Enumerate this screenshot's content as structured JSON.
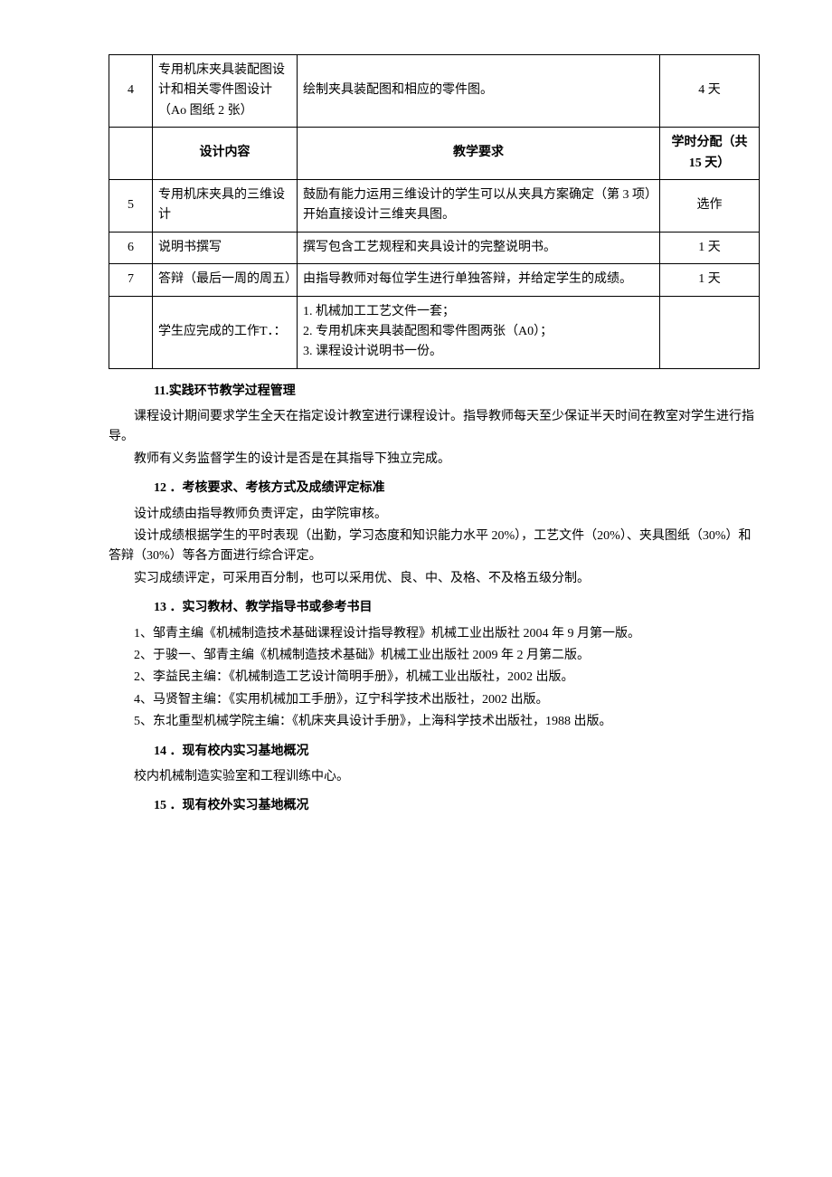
{
  "table": {
    "rows": [
      {
        "num": "4",
        "content": "专用机床夹具装配图设计和相关零件图设计（Ao 图纸 2 张）",
        "req": "绘制夹具装配图和相应的零件图。",
        "alloc": "4 天"
      },
      {
        "num": "",
        "content": "设计内容",
        "req": "教学要求",
        "alloc": "学时分配（共15 天）",
        "header": true
      },
      {
        "num": "5",
        "content": "专用机床夹具的三维设计",
        "req": "鼓励有能力运用三维设计的学生可以从夹具方案确定（第 3 项）开始直接设计三维夹具图。",
        "alloc": "选作"
      },
      {
        "num": "6",
        "content": "说明书撰写",
        "req": "撰写包含工艺规程和夹具设计的完整说明书。",
        "alloc": "1 天"
      },
      {
        "num": "7",
        "content": "答辩（最后一周的周五）",
        "req": "由指导教师对每位学生进行单独答辩，并给定学生的成绩。",
        "alloc": "1 天"
      },
      {
        "num": "",
        "content": "学生应完成的工作T．：",
        "req": "1. 机械加工工艺文件一套；\n2. 专用机床夹具装配图和零件图两张（A0）；\n3. 课程设计说明书一份。",
        "alloc": ""
      }
    ]
  },
  "sections": {
    "s11": {
      "title": "11.实践环节教学过程管理",
      "p1": "课程设计期间要求学生全天在指定设计教室进行课程设计。指导教师每天至少保证半天时间在教室对学生进行指导。",
      "p2": "教师有义务监督学生的设计是否是在其指导下独立完成。"
    },
    "s12": {
      "title": "12 ．考核要求、考核方式及成绩评定标准",
      "p1": "设计成绩由指导教师负责评定，由学院审核。",
      "p2": "设计成绩根据学生的平时表现（出勤，学习态度和知识能力水平 20%），工艺文件（20%）、夹具图纸（30%）和答辩（30%）等各方面进行综合评定。",
      "p3": "实习成绩评定，可采用百分制，也可以采用优、良、中、及格、不及格五级分制。"
    },
    "s13": {
      "title": "13 ．实习教材、教学指导书或参考书目",
      "r1": "1、邹青主编《机械制造技术基础课程设计指导教程》机械工业出版社 2004 年 9 月第一版。",
      "r2": "2、于骏一、邹青主编《机械制造技术基础》机械工业出版社 2009 年 2 月第二版。",
      "r3": "2、李益民主编：《机械制造工艺设计简明手册》，机械工业出版社，2002 出版。",
      "r4": "4、马贤智主编：《实用机械加工手册》，辽宁科学技术出版社，2002 出版。",
      "r5": "5、东北重型机械学院主编：《机床夹具设计手册》，上海科学技术出版社，1988 出版。"
    },
    "s14": {
      "title": "14 ．现有校内实习基地概况",
      "p1": "校内机械制造实验室和工程训练中心。"
    },
    "s15": {
      "title": "15 ．现有校外实习基地概况"
    }
  }
}
